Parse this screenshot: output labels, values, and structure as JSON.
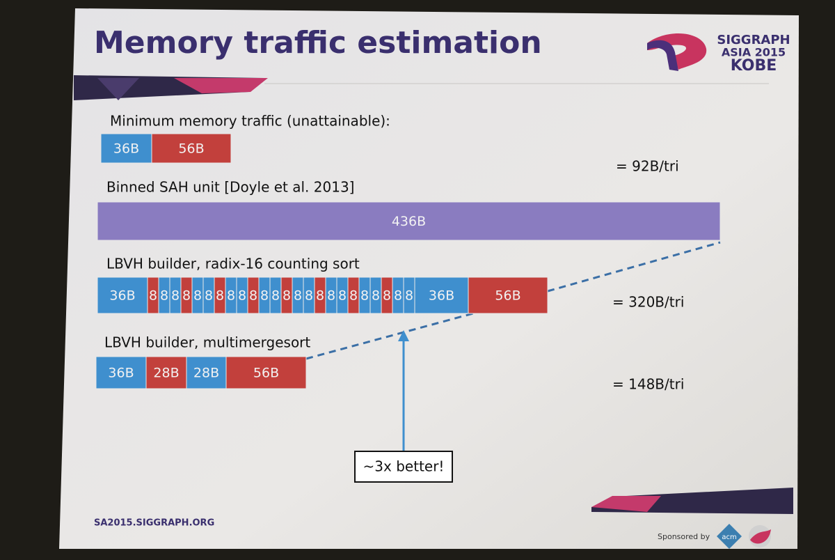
{
  "header": {
    "title": "Memory traffic estimation",
    "logo": [
      "SIGGRAPH",
      "ASIA 2015",
      "KOBE"
    ]
  },
  "rows": [
    {
      "caption": "Minimum memory traffic (unattainable):",
      "total": "= 92B/tri",
      "segments": [
        {
          "label": "36B",
          "color": "#3f8fce"
        },
        {
          "label": "56B",
          "color": "#c2403c"
        }
      ]
    },
    {
      "caption": "Binned SAH unit [Doyle et al. 2013]",
      "segments": [
        {
          "label": "436B",
          "color": "#8a7cc0"
        }
      ]
    },
    {
      "caption": "LBVH builder, radix-16 counting sort",
      "total": "= 320B/tri",
      "segments": [
        {
          "label": "36B",
          "color": "#3f8fce"
        },
        {
          "label": "8",
          "color": "#c2403c"
        },
        {
          "label": "8",
          "color": "#3f8fce"
        },
        {
          "label": "8",
          "color": "#3f8fce"
        },
        {
          "label": "8",
          "color": "#c2403c"
        },
        {
          "label": "8",
          "color": "#3f8fce"
        },
        {
          "label": "8",
          "color": "#3f8fce"
        },
        {
          "label": "8",
          "color": "#c2403c"
        },
        {
          "label": "8",
          "color": "#3f8fce"
        },
        {
          "label": "8",
          "color": "#3f8fce"
        },
        {
          "label": "8",
          "color": "#c2403c"
        },
        {
          "label": "8",
          "color": "#3f8fce"
        },
        {
          "label": "8",
          "color": "#3f8fce"
        },
        {
          "label": "8",
          "color": "#c2403c"
        },
        {
          "label": "8",
          "color": "#3f8fce"
        },
        {
          "label": "8",
          "color": "#3f8fce"
        },
        {
          "label": "8",
          "color": "#c2403c"
        },
        {
          "label": "8",
          "color": "#3f8fce"
        },
        {
          "label": "8",
          "color": "#3f8fce"
        },
        {
          "label": "8",
          "color": "#c2403c"
        },
        {
          "label": "8",
          "color": "#3f8fce"
        },
        {
          "label": "8",
          "color": "#3f8fce"
        },
        {
          "label": "8",
          "color": "#c2403c"
        },
        {
          "label": "8",
          "color": "#3f8fce"
        },
        {
          "label": "8",
          "color": "#3f8fce"
        },
        {
          "label": "36B",
          "color": "#3f8fce"
        },
        {
          "label": "56B",
          "color": "#c2403c"
        }
      ]
    },
    {
      "caption": "LBVH builder, multimergesort",
      "total": "= 148B/tri",
      "segments": [
        {
          "label": "36B",
          "color": "#3f8fce"
        },
        {
          "label": "28B",
          "color": "#c2403c"
        },
        {
          "label": "28B",
          "color": "#3f8fce"
        },
        {
          "label": "56B",
          "color": "#c2403c"
        }
      ]
    }
  ],
  "callout": "~3x better!",
  "footer": {
    "url": "SA2015.SIGGRAPH.ORG",
    "sponsor": "Sponsored by",
    "sponsor_logo": "acm"
  }
}
